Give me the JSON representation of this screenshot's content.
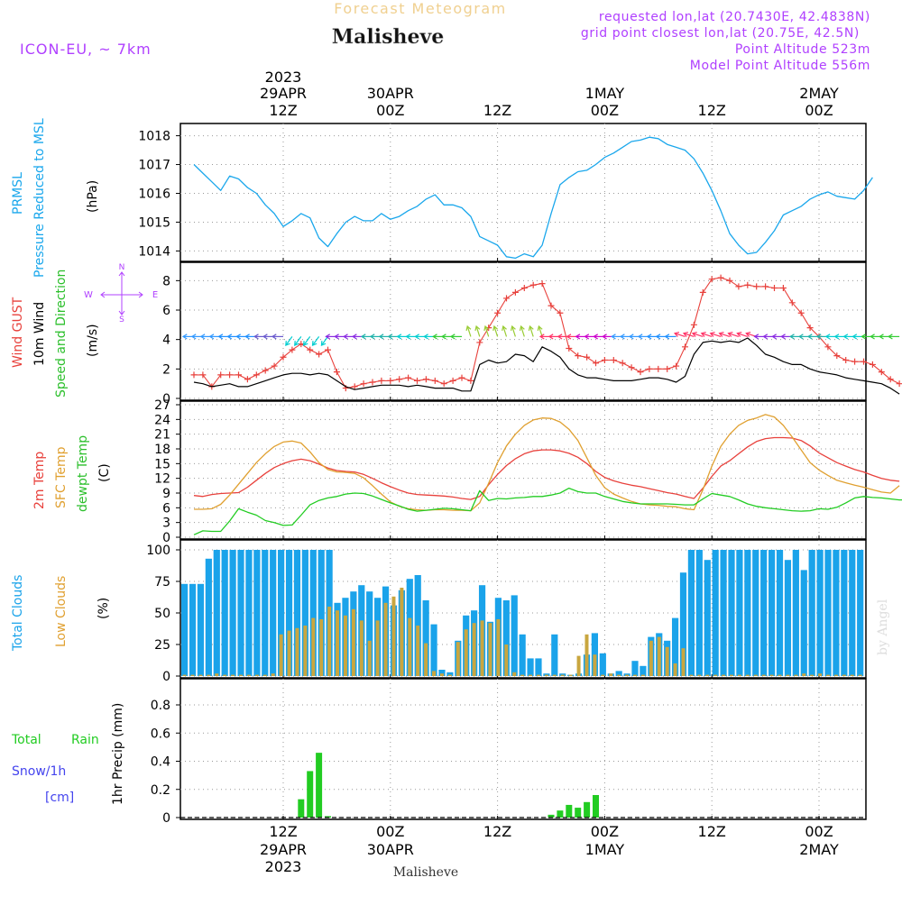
{
  "header": {
    "subtitle": "Forecast Meteogram",
    "location": "Malisheve",
    "model": "ICON-EU, ~ 7km",
    "requested": "requested lon,lat (20.7430E, 42.4838N)",
    "grid_point": "grid point closest lon,lat (20.75E, 42.5N)",
    "point_alt": "Point Altitude 523m",
    "model_alt": "Model Point Altitude 556m",
    "footer": "Malisheve",
    "watermark": "by Angel"
  },
  "colors": {
    "pressure": "#1aa7ec",
    "gust": "#e8413c",
    "wind": "#000000",
    "dirlabel": "#2bbf2b",
    "temp": "#e8413c",
    "sfc": "#e0a030",
    "dew": "#22cc22",
    "total_cloud": "#1aa3ea",
    "low_cloud": "#c9a63f",
    "rain": "#22cc22",
    "snow": "#4444ee",
    "compass": "#b040ff",
    "info": "#b040ff"
  },
  "top_axis": [
    {
      "top": "2023",
      "mid": "29APR",
      "bot": "12Z"
    },
    {
      "top": "",
      "mid": "30APR",
      "bot": "00Z"
    },
    {
      "top": "",
      "mid": "",
      "bot": "12Z"
    },
    {
      "top": "",
      "mid": "1MAY",
      "bot": "00Z"
    },
    {
      "top": "",
      "mid": "",
      "bot": "12Z"
    },
    {
      "top": "",
      "mid": "2MAY",
      "bot": "00Z"
    }
  ],
  "bottom_axis": [
    {
      "a": "12Z",
      "b": "29APR",
      "c": "2023"
    },
    {
      "a": "00Z",
      "b": "30APR",
      "c": ""
    },
    {
      "a": "12Z",
      "b": "",
      "c": ""
    },
    {
      "a": "00Z",
      "b": "1MAY",
      "c": ""
    },
    {
      "a": "12Z",
      "b": "",
      "c": ""
    },
    {
      "a": "00Z",
      "b": "2MAY",
      "c": ""
    }
  ],
  "panels_labels": {
    "pressure": {
      "line1": "PRMSL",
      "line2": "Pressure Reduced to MSL",
      "unit": "(hPa)"
    },
    "wind": {
      "l1": "Wind GUST",
      "l2": "10m Wind",
      "l3": "Speed and Direction",
      "unit": "(m/s)",
      "compass_n": "N",
      "compass_s": "S",
      "compass_w": "W",
      "compass_e": "E"
    },
    "temp": {
      "l1": "2m Temp",
      "l2": "SFC Temp",
      "l3": "dewpt Temp",
      "unit": "(C)"
    },
    "cloud": {
      "l1": "Total Clouds",
      "l2": "Low Clouds",
      "unit": "(%)"
    },
    "precip": {
      "l1": "Total",
      "l1b": "Rain",
      "l2": "Snow/1h",
      "l3": "[cm]",
      "unit": "1hr Precip (mm)"
    }
  },
  "chart_data": [
    {
      "type": "line",
      "title": "PRMSL Pressure Reduced to MSL",
      "ylabel": "(hPa)",
      "x_hours_from_29APR_00Z": {
        "start": 2,
        "step": 1
      },
      "ylim": [
        1013.7,
        1018.3
      ],
      "yticks": [
        1014,
        1015,
        1016,
        1017,
        1018
      ],
      "series": [
        {
          "name": "PRMSL",
          "values": [
            1017.0,
            1016.7,
            1016.4,
            1016.1,
            1016.6,
            1016.5,
            1016.2,
            1016.0,
            1015.6,
            1015.3,
            1014.85,
            1015.05,
            1015.3,
            1015.15,
            1014.45,
            1014.15,
            1014.6,
            1015.0,
            1015.2,
            1015.05,
            1015.05,
            1015.3,
            1015.1,
            1015.2,
            1015.4,
            1015.55,
            1015.8,
            1015.95,
            1015.6,
            1015.6,
            1015.5,
            1015.2,
            1014.5,
            1014.35,
            1014.2,
            1013.8,
            1013.75,
            1013.9,
            1013.8,
            1014.2,
            1015.3,
            1016.3,
            1016.55,
            1016.75,
            1016.8,
            1017.0,
            1017.25,
            1017.4,
            1017.6,
            1017.8,
            1017.85,
            1017.95,
            1017.9,
            1017.7,
            1017.6,
            1017.5,
            1017.2,
            1016.7,
            1016.1,
            1015.4,
            1014.6,
            1014.2,
            1013.9,
            1013.95,
            1014.3,
            1014.7,
            1015.25,
            1015.4,
            1015.55,
            1015.8,
            1015.95,
            1016.05,
            1015.9,
            1015.85,
            1015.8,
            1016.1,
            1016.55
          ]
        }
      ]
    },
    {
      "type": "line",
      "title": "Wind GUST / 10m Wind Speed and Direction",
      "ylabel": "(m/s)",
      "x_hours_from_29APR_00Z": {
        "start": 2,
        "step": 1
      },
      "ylim": [
        0,
        9
      ],
      "yticks": [
        0,
        2,
        4,
        6,
        8
      ],
      "series": [
        {
          "name": "Wind GUST",
          "values": [
            1.6,
            1.6,
            0.8,
            1.6,
            1.6,
            1.6,
            1.3,
            1.6,
            1.9,
            2.2,
            2.8,
            3.3,
            3.7,
            3.3,
            3.0,
            3.3,
            1.8,
            0.7,
            0.8,
            1.0,
            1.1,
            1.2,
            1.2,
            1.3,
            1.4,
            1.2,
            1.3,
            1.2,
            1.0,
            1.2,
            1.4,
            1.2,
            3.8,
            4.8,
            5.8,
            6.8,
            7.2,
            7.5,
            7.7,
            7.8,
            6.3,
            5.8,
            3.4,
            2.9,
            2.8,
            2.4,
            2.6,
            2.6,
            2.4,
            2.1,
            1.8,
            2.0,
            2.0,
            2.0,
            2.2,
            3.5,
            5.0,
            7.2,
            8.1,
            8.2,
            8.0,
            7.6,
            7.7,
            7.6,
            7.6,
            7.5,
            7.5,
            6.5,
            5.8,
            4.8,
            4.2,
            3.5,
            2.9,
            2.6,
            2.5,
            2.5,
            2.3,
            1.8,
            1.3,
            1.0
          ]
        },
        {
          "name": "10m Wind",
          "values": [
            1.1,
            1.0,
            0.8,
            0.9,
            1.0,
            0.8,
            0.8,
            1.0,
            1.2,
            1.4,
            1.6,
            1.7,
            1.7,
            1.6,
            1.7,
            1.6,
            1.2,
            0.8,
            0.6,
            0.7,
            0.8,
            0.9,
            0.9,
            0.9,
            0.8,
            0.9,
            0.8,
            0.7,
            0.7,
            0.7,
            0.5,
            0.5,
            2.3,
            2.6,
            2.4,
            2.5,
            3.0,
            2.9,
            2.5,
            3.5,
            3.2,
            2.8,
            2.0,
            1.6,
            1.4,
            1.4,
            1.3,
            1.2,
            1.2,
            1.2,
            1.3,
            1.4,
            1.4,
            1.3,
            1.1,
            1.5,
            3.0,
            3.8,
            3.9,
            3.8,
            3.9,
            3.8,
            4.1,
            3.6,
            3.0,
            2.8,
            2.5,
            2.3,
            2.3,
            2.0,
            1.8,
            1.7,
            1.6,
            1.4,
            1.3,
            1.2,
            1.1,
            1.0,
            0.7,
            0.3
          ]
        }
      ]
    },
    {
      "type": "line",
      "title": "2m Temp / SFC Temp / dewpt Temp",
      "ylabel": "(C)",
      "x_hours_from_29APR_00Z": {
        "start": 2,
        "step": 1
      },
      "ylim": [
        0,
        27
      ],
      "yticks": [
        0,
        3,
        6,
        9,
        12,
        15,
        18,
        21,
        24,
        27
      ],
      "series": [
        {
          "name": "2m Temp",
          "values": [
            8.5,
            8.3,
            8.7,
            8.9,
            9.0,
            9.1,
            10.2,
            11.6,
            13.0,
            14.2,
            15.0,
            15.6,
            15.9,
            15.6,
            14.9,
            14.1,
            13.6,
            13.4,
            13.3,
            12.8,
            12.0,
            11.1,
            10.3,
            9.6,
            9.0,
            8.7,
            8.6,
            8.5,
            8.4,
            8.2,
            7.9,
            7.7,
            8.3,
            10.7,
            12.8,
            14.6,
            16.0,
            17.0,
            17.6,
            17.8,
            17.8,
            17.6,
            17.1,
            16.3,
            15.0,
            13.4,
            12.2,
            11.5,
            11.0,
            10.6,
            10.3,
            9.9,
            9.5,
            9.1,
            8.8,
            8.3,
            7.9,
            10.0,
            12.4,
            14.5,
            15.6,
            17.0,
            18.4,
            19.5,
            20.1,
            20.3,
            20.3,
            20.2,
            19.7,
            18.6,
            17.2,
            16.2,
            15.2,
            14.5,
            13.8,
            13.3,
            12.6,
            12.0,
            11.6,
            11.4
          ]
        },
        {
          "name": "SFC Temp",
          "values": [
            5.7,
            5.7,
            5.8,
            6.7,
            8.6,
            10.8,
            13.0,
            15.2,
            17.0,
            18.5,
            19.4,
            19.6,
            19.2,
            17.4,
            15.2,
            13.8,
            13.3,
            13.2,
            13.0,
            12.1,
            10.5,
            8.8,
            7.2,
            6.3,
            5.8,
            5.6,
            5.5,
            5.6,
            5.6,
            5.5,
            5.5,
            5.4,
            7.0,
            11.0,
            15.2,
            18.6,
            21.0,
            22.8,
            23.9,
            24.3,
            24.2,
            23.5,
            22.0,
            19.7,
            16.2,
            12.6,
            10.1,
            8.8,
            8.0,
            7.3,
            6.8,
            6.6,
            6.5,
            6.3,
            6.2,
            5.8,
            5.6,
            9.7,
            14.5,
            18.5,
            21.0,
            22.8,
            23.8,
            24.3,
            25.0,
            24.5,
            22.8,
            20.4,
            17.8,
            15.2,
            13.7,
            12.6,
            11.6,
            11.1,
            10.6,
            10.2,
            9.7,
            9.2,
            9.0,
            10.5
          ]
        },
        {
          "name": "dewpt Temp",
          "values": [
            0.5,
            1.3,
            1.2,
            1.2,
            3.3,
            5.8,
            5.1,
            4.5,
            3.4,
            3.0,
            2.4,
            2.5,
            4.5,
            6.6,
            7.5,
            8.0,
            8.3,
            8.8,
            9.0,
            8.9,
            8.4,
            7.7,
            7.0,
            6.4,
            5.7,
            5.3,
            5.5,
            5.7,
            5.9,
            5.8,
            5.6,
            5.4,
            9.5,
            7.5,
            7.9,
            7.8,
            8.0,
            8.1,
            8.3,
            8.3,
            8.6,
            9.0,
            10.0,
            9.3,
            9.0,
            9.0,
            8.3,
            7.8,
            7.3,
            7.0,
            6.8,
            6.8,
            6.8,
            6.8,
            6.7,
            6.6,
            6.6,
            7.8,
            8.9,
            8.6,
            8.3,
            7.6,
            6.8,
            6.3,
            6.0,
            5.8,
            5.6,
            5.4,
            5.3,
            5.4,
            5.8,
            5.7,
            6.1,
            7.0,
            8.0,
            8.3,
            8.1,
            8.0,
            7.8,
            7.6,
            7.6,
            7.9
          ]
        }
      ]
    },
    {
      "type": "bar",
      "title": "Total Clouds / Low Clouds",
      "ylabel": "(%)",
      "x_hours_from_29APR_00Z": {
        "start": 2,
        "step": 1
      },
      "ylim": [
        0,
        105
      ],
      "yticks": [
        0,
        25,
        50,
        75,
        100
      ],
      "series": [
        {
          "name": "Total Clouds",
          "values": [
            73,
            73,
            73,
            93,
            100,
            100,
            100,
            100,
            100,
            100,
            100,
            100,
            100,
            100,
            100,
            100,
            100,
            100,
            100,
            58,
            62,
            67,
            72,
            67,
            62,
            71,
            56,
            68,
            77,
            80,
            60,
            41,
            5,
            3,
            28,
            48,
            52,
            72,
            43,
            62,
            60,
            64,
            33,
            14,
            14,
            2,
            33,
            2,
            1,
            2,
            17,
            34,
            18,
            2,
            4,
            2,
            12,
            8,
            31,
            34,
            28,
            46,
            82,
            100,
            100,
            92,
            100,
            100,
            100,
            100,
            100,
            100,
            100,
            100,
            100,
            92,
            100,
            84,
            100,
            100,
            100,
            100,
            100,
            100,
            100
          ]
        },
        {
          "name": "Low Clouds",
          "values": [
            1,
            1,
            1,
            1,
            2,
            1,
            1,
            1,
            1,
            1,
            1,
            2,
            33,
            36,
            38,
            40,
            46,
            45,
            55,
            52,
            48,
            53,
            44,
            28,
            44,
            58,
            63,
            70,
            46,
            40,
            26,
            4,
            2,
            1,
            27,
            37,
            42,
            44,
            42,
            45,
            25,
            3,
            1,
            1,
            1,
            1,
            1,
            1,
            1,
            16,
            33,
            17,
            1,
            2,
            1,
            1,
            1,
            1,
            28,
            31,
            23,
            10,
            22,
            1,
            1,
            1,
            1,
            1,
            1,
            1,
            1,
            1,
            1,
            1,
            1,
            1,
            1,
            2,
            1,
            2,
            1,
            1,
            1,
            1,
            1
          ]
        }
      ]
    },
    {
      "type": "bar",
      "title": "1hr Precip (mm)",
      "ylabel": "1hr Precip (mm)",
      "x_hours_from_29APR_00Z": {
        "start": 2,
        "step": 1
      },
      "ylim": [
        0,
        0.96
      ],
      "yticks": [
        0,
        0.2,
        0.4,
        0.6,
        0.8
      ],
      "series": [
        {
          "name": "Total Rain",
          "values": [
            0,
            0,
            0,
            0,
            0,
            0,
            0,
            0,
            0,
            0,
            0,
            0,
            0.13,
            0.33,
            0.46,
            0.01,
            0,
            0,
            0,
            0,
            0,
            0,
            0,
            0,
            0,
            0,
            0,
            0,
            0,
            0,
            0,
            0,
            0,
            0,
            0,
            0,
            0,
            0,
            0,
            0,
            0.02,
            0.05,
            0.09,
            0.07,
            0.11,
            0.16,
            0,
            0,
            0,
            0,
            0,
            0,
            0,
            0,
            0,
            0,
            0,
            0,
            0,
            0,
            0,
            0,
            0,
            0,
            0,
            0,
            0,
            0,
            0,
            0,
            0,
            0,
            0,
            0,
            0,
            0,
            0,
            0,
            0,
            0
          ]
        },
        {
          "name": "Snow/1h [cm]",
          "values": []
        }
      ]
    }
  ]
}
